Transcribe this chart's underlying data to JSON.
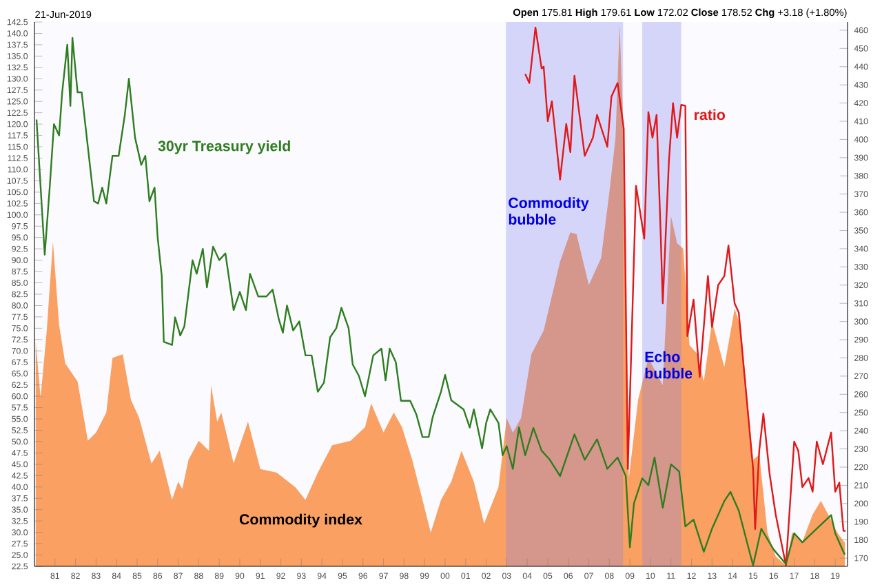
{
  "chart_data": {
    "type": "line",
    "annotations": [
      "21-Jun-2019",
      "**Open** 175.81 **High** 179.61 **Low** 172.02 **Close** 178.52 **Chg** +3.18 (+1.80%)"
    ],
    "xlim": [
      1980.0,
      2019.6
    ],
    "xticks": [
      {
        "value": 1981,
        "label": "81"
      },
      {
        "value": 1982,
        "label": "82"
      },
      {
        "value": 1983,
        "label": "83"
      },
      {
        "value": 1984,
        "label": "84"
      },
      {
        "value": 1985,
        "label": "85"
      },
      {
        "value": 1986,
        "label": "86"
      },
      {
        "value": 1987,
        "label": "87"
      },
      {
        "value": 1988,
        "label": "88"
      },
      {
        "value": 1989,
        "label": "89"
      },
      {
        "value": 1990,
        "label": "90"
      },
      {
        "value": 1991,
        "label": "91"
      },
      {
        "value": 1992,
        "label": "92"
      },
      {
        "value": 1993,
        "label": "93"
      },
      {
        "value": 1994,
        "label": "94"
      },
      {
        "value": 1995,
        "label": "95"
      },
      {
        "value": 1996,
        "label": "96"
      },
      {
        "value": 1997,
        "label": "97"
      },
      {
        "value": 1998,
        "label": "98"
      },
      {
        "value": 1999,
        "label": "99"
      },
      {
        "value": 2000,
        "label": "00"
      },
      {
        "value": 2001,
        "label": "01"
      },
      {
        "value": 2002,
        "label": "02"
      },
      {
        "value": 2003,
        "label": "03"
      },
      {
        "value": 2004,
        "label": "04"
      },
      {
        "value": 2005,
        "label": "05"
      },
      {
        "value": 2006,
        "label": "06"
      },
      {
        "value": 2007,
        "label": "07"
      },
      {
        "value": 2008,
        "label": "08"
      },
      {
        "value": 2009,
        "label": "09"
      },
      {
        "value": 2010,
        "label": "10"
      },
      {
        "value": 2011,
        "label": "11"
      },
      {
        "value": 2012,
        "label": "12"
      },
      {
        "value": 2013,
        "label": "13"
      },
      {
        "value": 2014,
        "label": "14"
      },
      {
        "value": 2015,
        "label": "15"
      },
      {
        "value": 2016,
        "label": "16"
      },
      {
        "value": 2017,
        "label": "17"
      },
      {
        "value": 2018,
        "label": "18"
      },
      {
        "value": 2019,
        "label": "19"
      }
    ],
    "ylim": [
      22.5,
      142.5
    ],
    "yticks": [
      22.5,
      {
        "value": 25,
        "label": "25.0"
      },
      27.5,
      {
        "value": 30,
        "label": "30.0"
      },
      32.5,
      {
        "value": 35,
        "label": "35.0"
      },
      37.5,
      {
        "value": 40,
        "label": "40.0"
      },
      42.5,
      {
        "value": 45,
        "label": "45.0"
      },
      47.5,
      {
        "value": 50,
        "label": "50.0"
      },
      52.5,
      {
        "value": 55,
        "label": "55.0"
      },
      57.5,
      {
        "value": 60,
        "label": "60.0"
      },
      62.5,
      {
        "value": 65,
        "label": "65.0"
      },
      67.5,
      {
        "value": 70,
        "label": "70.0"
      },
      72.5,
      {
        "value": 75,
        "label": "75.0"
      },
      77.5,
      {
        "value": 80,
        "label": "80.0"
      },
      82.5,
      {
        "value": 85,
        "label": "85.0"
      },
      87.5,
      {
        "value": 90,
        "label": "90.0"
      },
      92.5,
      {
        "value": 95,
        "label": "95.0"
      },
      97.5,
      {
        "value": 100,
        "label": "100.0"
      },
      102.5,
      {
        "value": 105,
        "label": "105.0"
      },
      107.5,
      {
        "value": 110,
        "label": "110.0"
      },
      112.5,
      {
        "value": 115,
        "label": "115.0"
      },
      117.5,
      {
        "value": 120,
        "label": "120.0"
      },
      122.5,
      {
        "value": 125,
        "label": "125.0"
      },
      127.5,
      {
        "value": 130,
        "label": "130.0"
      },
      132.5,
      {
        "value": 135,
        "label": "135.0"
      },
      137.5,
      {
        "value": 140,
        "label": "140.0"
      },
      142.5
    ],
    "y2lim": [
      165.5,
      464.5
    ],
    "y2ticks": [
      170,
      180,
      190,
      200,
      210,
      220,
      230,
      240,
      250,
      260,
      270,
      280,
      290,
      300,
      310,
      320,
      330,
      340,
      350,
      360,
      370,
      380,
      390,
      400,
      410,
      420,
      430,
      440,
      450,
      460
    ],
    "bands": [
      {
        "axis": "x",
        "from": 2002.96,
        "to": 2008.67,
        "label": "Commodity bubble",
        "color": "#8080f0"
      },
      {
        "axis": "x",
        "from": 2009.6,
        "to": 2011.5,
        "label": "Echo bubble",
        "color": "#8080f0"
      }
    ],
    "series": [
      {
        "name": "Commodity index",
        "type": "area",
        "axis": "y2",
        "color": "#f9a062",
        "x": [
          1980.06,
          1980.3,
          1980.6,
          1980.9,
          1981.2,
          1981.5,
          1982.1,
          1982.6,
          1983.0,
          1983.5,
          1983.8,
          1984.3,
          1984.7,
          1985.1,
          1985.7,
          1986.1,
          1986.7,
          1987.0,
          1987.2,
          1987.5,
          1988.0,
          1988.5,
          1988.6,
          1988.9,
          1989.1,
          1989.7,
          1990.4,
          1991.0,
          1991.8,
          1992.7,
          1993.2,
          1993.8,
          1994.5,
          1995.4,
          1996.1,
          1996.4,
          1997.0,
          1997.5,
          1997.9,
          1998.4,
          1998.9,
          1999.3,
          1999.8,
          2000.3,
          2000.8,
          2001.4,
          2001.9,
          2002.6,
          2003.0,
          2003.3,
          2003.7,
          2004.2,
          2004.8,
          2005.6,
          2006.1,
          2006.4,
          2007.0,
          2007.6,
          2008.0,
          2008.3,
          2008.5,
          2008.7,
          2008.95,
          2009.4,
          2009.9,
          2010.6,
          2011.0,
          2011.3,
          2011.6,
          2011.9,
          2012.3,
          2012.6,
          2013.0,
          2013.6,
          2014.1,
          2014.4,
          2015.0,
          2015.3,
          2015.7,
          2016.1,
          2016.6,
          2016.9,
          2017.4,
          2017.9,
          2018.3,
          2018.8,
          2019.1,
          2019.47
        ],
        "values": [
          289,
          258,
          295,
          344,
          298,
          277,
          267,
          234.5,
          239,
          250,
          280,
          282,
          257,
          247,
          222,
          229,
          202,
          212,
          208,
          224,
          234.5,
          229,
          265,
          245,
          250,
          222,
          245,
          219,
          217,
          209,
          202,
          217,
          232,
          234.5,
          242,
          255,
          239,
          250,
          242,
          224,
          202,
          184,
          202,
          212,
          229,
          212,
          189,
          209,
          247,
          239,
          247,
          282,
          295,
          333,
          349,
          348,
          320,
          335,
          371,
          401,
          463,
          401,
          214,
          257,
          280,
          265,
          358,
          343,
          340,
          287,
          282,
          267,
          300,
          275,
          307,
          297,
          224,
          227,
          184,
          171,
          166,
          184,
          179,
          194,
          201.5,
          191,
          184,
          178.5
        ]
      },
      {
        "name": "30yr Treasury yield",
        "color": "#2e7d1e",
        "x": [
          1980.1,
          1980.5,
          1980.75,
          1980.95,
          1981.2,
          1981.35,
          1981.6,
          1981.75,
          1981.85,
          1982.1,
          1982.3,
          1982.6,
          1982.9,
          1983.1,
          1983.3,
          1983.5,
          1983.8,
          1984.1,
          1984.4,
          1984.6,
          1984.9,
          1985.2,
          1985.4,
          1985.6,
          1985.85,
          1986.0,
          1986.2,
          1986.3,
          1986.7,
          1986.85,
          1987.1,
          1987.3,
          1987.7,
          1987.9,
          1988.2,
          1988.4,
          1988.7,
          1989.0,
          1989.3,
          1989.7,
          1990.0,
          1990.3,
          1990.5,
          1990.9,
          1991.3,
          1991.6,
          1991.9,
          1992.1,
          1992.3,
          1992.6,
          1992.9,
          1993.2,
          1993.5,
          1993.8,
          1994.1,
          1994.4,
          1994.7,
          1994.95,
          1995.3,
          1995.5,
          1995.8,
          1996.1,
          1996.5,
          1996.9,
          1997.1,
          1997.3,
          1997.6,
          1997.85,
          1998.3,
          1998.6,
          1998.9,
          1999.2,
          1999.4,
          1999.8,
          2000.0,
          2000.3,
          2000.9,
          2001.2,
          2001.4,
          2001.8,
          2002.0,
          2002.2,
          2002.6,
          2002.8,
          2003.0,
          2003.3,
          2003.6,
          2003.9,
          2004.3,
          2004.7,
          2005.1,
          2005.6,
          2006.3,
          2006.8,
          2007.4,
          2007.9,
          2008.4,
          2008.8,
          2009.0,
          2009.2,
          2009.6,
          2009.9,
          2010.2,
          2010.6,
          2011.0,
          2011.4,
          2011.7,
          2012.1,
          2012.6,
          2013.0,
          2013.6,
          2013.9,
          2014.3,
          2015.0,
          2015.4,
          2016.0,
          2016.6,
          2017.0,
          2017.4,
          2018.1,
          2018.8,
          2019.0,
          2019.4,
          2019.47
        ],
        "values": [
          121,
          91.2,
          106.5,
          120,
          117.5,
          127,
          137.5,
          124,
          139,
          127,
          127,
          115,
          103,
          102.5,
          106,
          102.5,
          113,
          113,
          122,
          130,
          117,
          111,
          113,
          103,
          106,
          95,
          86.5,
          72,
          71.3,
          77.4,
          73.4,
          75.4,
          90,
          87,
          92.5,
          84,
          93,
          90,
          91.5,
          79,
          83,
          79,
          87,
          82,
          82,
          83.5,
          77,
          74,
          80,
          74.5,
          76.5,
          69,
          69,
          61,
          63,
          73,
          75,
          79.5,
          75,
          67,
          64.5,
          60,
          69,
          70.5,
          63.5,
          70.5,
          67.5,
          59,
          59,
          56,
          51,
          51,
          55.5,
          61,
          64.7,
          59.1,
          57.1,
          53.1,
          57.1,
          48.5,
          54.1,
          57.1,
          54.1,
          47,
          49,
          44,
          53.1,
          47,
          53,
          48,
          46,
          42.4,
          51.6,
          46,
          50.5,
          44,
          46.5,
          42.4,
          26.7,
          36.4,
          41.9,
          40.4,
          46.5,
          35.4,
          45,
          43.4,
          31.3,
          32.8,
          25.7,
          30.8,
          36.9,
          38.9,
          34.8,
          22.7,
          30.8,
          26.2,
          23,
          29.8,
          27.8,
          30.8,
          33.8,
          29.8,
          25.7,
          25.1
        ]
      },
      {
        "name": "ratio",
        "axis": "y2",
        "color": "#e01818",
        "x": [
          2003.9,
          2004.1,
          2004.4,
          2004.7,
          2004.8,
          2005.0,
          2005.2,
          2005.6,
          2005.9,
          2006.1,
          2006.3,
          2006.8,
          2007.2,
          2007.4,
          2007.9,
          2008.1,
          2008.4,
          2008.7,
          2008.9,
          2009.3,
          2009.7,
          2009.9,
          2010.1,
          2010.3,
          2010.5,
          2010.6,
          2010.9,
          2011.1,
          2011.3,
          2011.5,
          2011.7,
          2011.8,
          2012.1,
          2012.4,
          2012.8,
          2013.0,
          2013.3,
          2013.6,
          2013.8,
          2014.1,
          2014.3,
          2015.0,
          2015.1,
          2015.3,
          2015.5,
          2015.8,
          2016.1,
          2016.6,
          2017.0,
          2017.2,
          2017.4,
          2017.7,
          2017.9,
          2018.1,
          2018.4,
          2018.8,
          2019.0,
          2019.2,
          2019.4,
          2019.5
        ],
        "values": [
          436,
          431,
          461.5,
          439,
          440,
          410,
          421,
          378,
          408.5,
          393,
          435,
          391,
          401,
          413.5,
          396,
          423.5,
          431,
          406,
          219,
          374.5,
          345.5,
          415,
          401,
          413.5,
          348,
          310,
          388,
          420,
          401,
          419,
          418.5,
          292,
          312,
          269.5,
          325,
          297,
          320,
          325,
          341.7,
          310,
          305,
          219,
          186,
          229,
          249.4,
          216.6,
          194,
          166,
          234,
          229,
          209,
          214,
          206.5,
          234,
          221.6,
          239,
          206.5,
          211.5,
          185,
          185
        ]
      }
    ]
  }
}
